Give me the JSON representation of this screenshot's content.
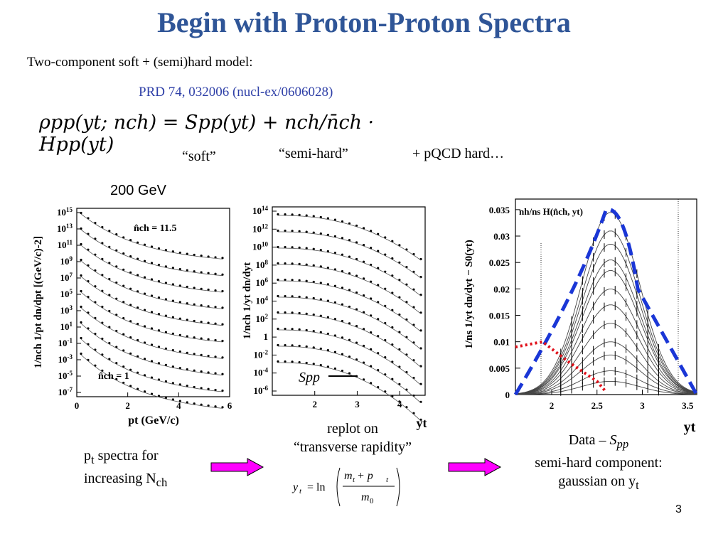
{
  "slide": {
    "title": "Begin with Proton-Proton Spectra",
    "intro": "Two-component soft + (semi)hard model:",
    "reference": "PRD 74, 032006 (nucl-ex/0606028)",
    "formula_terms": {
      "lhs": "ρpp(yt; nch)",
      "eq": "=",
      "soft_term": "Spp(yt)",
      "plus": "+",
      "hard_term": "nch/n̄ch · Hpp(yt)"
    },
    "label_soft": "“soft”",
    "label_semihard": "“semi-hard”",
    "label_pqcd": "+ pQCD hard…",
    "energy": "200 GeV",
    "page_number": "3"
  },
  "captions": {
    "pt_line1_pre": "p",
    "pt_line1_sub": "t",
    "pt_line1_post": " spectra for",
    "pt_line2_pre": "increasing N",
    "pt_line2_sub": "ch",
    "replot_line1": "replot on",
    "replot_line2": "“transverse rapidity”",
    "data_pre": "Data – ",
    "data_S": "S",
    "data_sub": "pp",
    "data_line2": "semi-hard component:",
    "data_line3_pre": "gaussian on y",
    "data_line3_sub": "t"
  },
  "yt_formula": {
    "lhs": "y",
    "lhs_sub": "t",
    "eq": "= ln",
    "num": "m",
    "num_sub": "t",
    "num_plus": " + p",
    "num_sub2": "t",
    "den": "m",
    "den_sub": "0"
  },
  "chart_data": [
    {
      "type": "scatter",
      "panel": "pt-spectra",
      "xlabel": "pt (GeV/c)",
      "ylabel": "1/nch 1/pt dn/dpt [(GeV/c)-2]",
      "x_ticks": [
        "0",
        "2",
        "4",
        "6"
      ],
      "xlim": [
        0,
        6
      ],
      "y_ticks": [
        "15",
        "13",
        "11",
        "9",
        "7",
        "5",
        "3",
        "1",
        "-1",
        "-3",
        "-5",
        "-7"
      ],
      "y_tick_prefix": "10",
      "log_scale": true,
      "annotations": [
        "n̂ch = 11.5",
        "n̂ch = 1"
      ],
      "n_series": 10
    },
    {
      "type": "scatter",
      "panel": "yt-spectra",
      "xlabel": "yt",
      "ylabel": "1/nch 1/yt dn/dyt",
      "x_ticks": [
        "2",
        "3",
        "4"
      ],
      "xlim": [
        1,
        4.6
      ],
      "y_ticks": [
        "14",
        "12",
        "10",
        "8",
        "6",
        "4",
        "2",
        "1",
        "-2",
        "-4",
        "-6"
      ],
      "y_tick_prefix": "10",
      "log_scale": true,
      "legend": [
        "Spp"
      ],
      "n_series": 10
    },
    {
      "type": "line",
      "panel": "hard-component",
      "xlabel": "yt",
      "ylabel": "1/ns 1/yt dn/dyt − S0(yt)",
      "x_ticks": [
        "2",
        "2.5",
        "3",
        "3.5"
      ],
      "xlim": [
        1.6,
        3.6
      ],
      "y_ticks": [
        "0.035",
        "0.03",
        "0.025",
        "0.02",
        "0.015",
        "0.01",
        "0.005",
        "0"
      ],
      "ylim": [
        0,
        0.037
      ],
      "annotation": "nh/ns H(n̂ch, yt)",
      "envelope_peak": {
        "x": 2.65,
        "y": 0.035
      },
      "soft_residual": [
        [
          1.6,
          0.009
        ],
        [
          1.9,
          0.01
        ],
        [
          2.2,
          0.006
        ],
        [
          2.5,
          0.0025
        ],
        [
          2.6,
          0.0005
        ]
      ]
    }
  ],
  "colors": {
    "title": "#2f5597",
    "reference": "#2e3fa7",
    "arrow_fill": "#ff00ff",
    "envelope": "#1a36d6",
    "soft_residual": "#e0101a"
  }
}
